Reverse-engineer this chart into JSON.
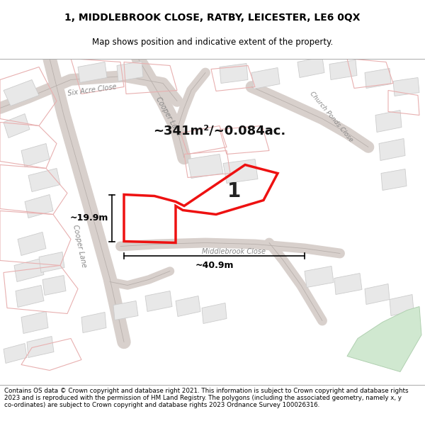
{
  "title_line1": "1, MIDDLEBROOK CLOSE, RATBY, LEICESTER, LE6 0QX",
  "title_line2": "Map shows position and indicative extent of the property.",
  "footer_text": "Contains OS data © Crown copyright and database right 2021. This information is subject to Crown copyright and database rights 2023 and is reproduced with the permission of HM Land Registry. The polygons (including the associated geometry, namely x, y co-ordinates) are subject to Crown copyright and database rights 2023 Ordnance Survey 100026316.",
  "area_text": "~341m²/~0.084ac.",
  "label_number": "1",
  "dim_width": "~40.9m",
  "dim_height": "~19.9m",
  "map_bg": "#f7f7f7",
  "property_edge": "#ee1111",
  "road_label_color": "#888888",
  "building_face": "#e8e8e8",
  "building_edge": "#cccccc",
  "road_outline": "#c0b8b5",
  "pink_line": "#e8b0b0",
  "green_fill": "#d0e8d0",
  "green_edge": "#b0d0b0"
}
